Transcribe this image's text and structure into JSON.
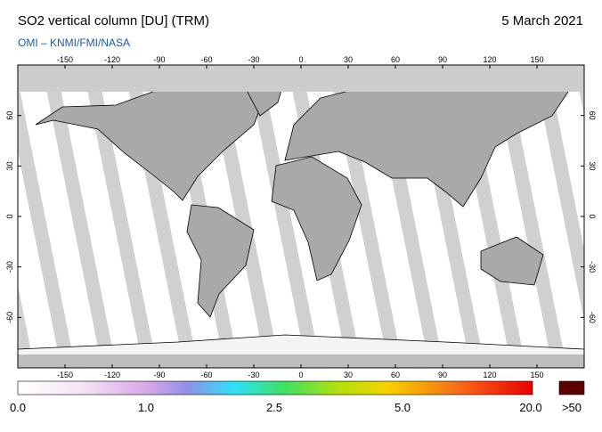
{
  "header": {
    "title": "SO2 vertical column [DU] (TRM)",
    "date": "5 March 2021",
    "subtitle": "OMI  –  KNMI/FMI/NASA"
  },
  "map": {
    "lon_ticks": [
      -150,
      -120,
      -90,
      -60,
      -30,
      0,
      30,
      60,
      90,
      120,
      150
    ],
    "lat_ticks": [
      -60,
      -30,
      0,
      30,
      60
    ]
  },
  "colorbar": {
    "labels": [
      "0.0",
      "1.0",
      "2.5",
      "5.0",
      "20.0"
    ],
    "overflow_label": ">50"
  }
}
